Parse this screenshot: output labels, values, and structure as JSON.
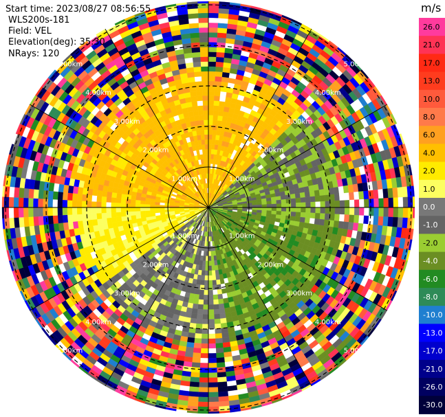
{
  "header": {
    "start_time": "Start time: 2023/08/27 08:56:55",
    "instrument": "WLS200s-181",
    "field": "Field: VEL",
    "elevation": "Elevation(deg): 35.30",
    "nrays": "NRays: 120"
  },
  "chart_data": {
    "type": "heatmap",
    "projection": "polar-ppi",
    "field": "VEL",
    "unit": "m/s",
    "rays": 120,
    "range_rings_km": [
      1,
      2,
      3,
      4,
      5
    ],
    "range_ring_labels": [
      "1.00km",
      "2.00km",
      "3.00km",
      "4.00km",
      "5.00km"
    ],
    "clim": [
      -30.0,
      26.0
    ],
    "colorbar": {
      "ticks": [
        "26.0",
        "21.0",
        "17.0",
        "13.0",
        "10.0",
        "8.0",
        "6.0",
        "4.0",
        "2.0",
        "1.0",
        "0.0",
        "-1.0",
        "-2.0",
        "-4.0",
        "-6.0",
        "-8.0",
        "-10.0",
        "-13.0",
        "-17.0",
        "-21.0",
        "-26.0",
        "-30.0"
      ],
      "colors": [
        "#ff3b9d",
        "#ff3355",
        "#ff2a14",
        "#ff3c1e",
        "#ff5a3c",
        "#ff7a4a",
        "#ffa020",
        "#ffc000",
        "#ffeb00",
        "#fcff60",
        "#787878",
        "#646464",
        "#9acd32",
        "#6b8e23",
        "#228b22",
        "#2e8b57",
        "#1f7fd0",
        "#0000ff",
        "#0000cd",
        "#00008b",
        "#000060",
        "#00003a"
      ]
    },
    "regions": [
      {
        "name": "northwest",
        "value": 5.0
      },
      {
        "name": "west",
        "value": 2.5
      },
      {
        "name": "east",
        "value": -1.5
      },
      {
        "name": "southeast",
        "value": -3.0
      },
      {
        "name": "southwest",
        "value": 0.0
      }
    ],
    "noise_beyond_km": 3.3
  }
}
